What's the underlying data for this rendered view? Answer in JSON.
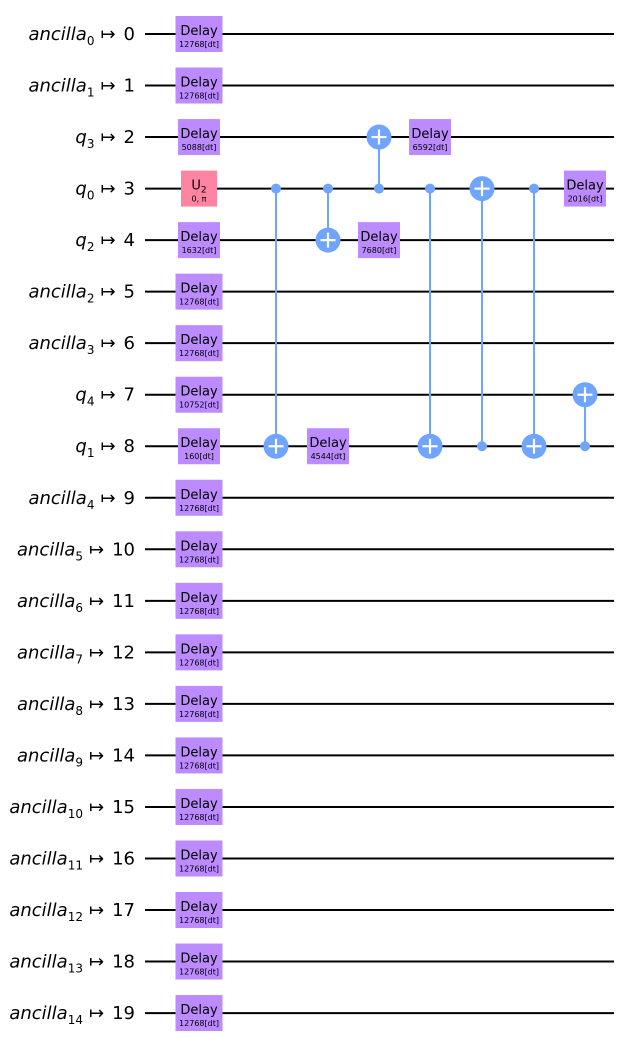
{
  "colors": {
    "delay": "#bb8bff",
    "u2": "#ff84a1",
    "cx": "#6fa4ff",
    "wire": "#000000"
  },
  "qubits": [
    {
      "name": "ancilla",
      "sub": "0",
      "index": "0"
    },
    {
      "name": "ancilla",
      "sub": "1",
      "index": "1"
    },
    {
      "name": "q",
      "sub": "3",
      "index": "2"
    },
    {
      "name": "q",
      "sub": "0",
      "index": "3"
    },
    {
      "name": "q",
      "sub": "2",
      "index": "4"
    },
    {
      "name": "ancilla",
      "sub": "2",
      "index": "5"
    },
    {
      "name": "ancilla",
      "sub": "3",
      "index": "6"
    },
    {
      "name": "q",
      "sub": "4",
      "index": "7"
    },
    {
      "name": "q",
      "sub": "1",
      "index": "8"
    },
    {
      "name": "ancilla",
      "sub": "4",
      "index": "9"
    },
    {
      "name": "ancilla",
      "sub": "5",
      "index": "10"
    },
    {
      "name": "ancilla",
      "sub": "6",
      "index": "11"
    },
    {
      "name": "ancilla",
      "sub": "7",
      "index": "12"
    },
    {
      "name": "ancilla",
      "sub": "8",
      "index": "13"
    },
    {
      "name": "ancilla",
      "sub": "9",
      "index": "14"
    },
    {
      "name": "ancilla",
      "sub": "10",
      "index": "15"
    },
    {
      "name": "ancilla",
      "sub": "11",
      "index": "16"
    },
    {
      "name": "ancilla",
      "sub": "12",
      "index": "17"
    },
    {
      "name": "ancilla",
      "sub": "13",
      "index": "18"
    },
    {
      "name": "ancilla",
      "sub": "14",
      "index": "19"
    }
  ],
  "map_symbol": "↦",
  "gates": [
    {
      "type": "delay",
      "wire": 0,
      "layer": 0,
      "label": "Delay",
      "param": "12768[dt]"
    },
    {
      "type": "delay",
      "wire": 1,
      "layer": 0,
      "label": "Delay",
      "param": "12768[dt]"
    },
    {
      "type": "delay",
      "wire": 2,
      "layer": 0,
      "label": "Delay",
      "param": "5088[dt]"
    },
    {
      "type": "u2",
      "wire": 3,
      "layer": 0,
      "label": "U",
      "label_sub": "2",
      "param": "0, π"
    },
    {
      "type": "delay",
      "wire": 4,
      "layer": 0,
      "label": "Delay",
      "param": "1632[dt]"
    },
    {
      "type": "delay",
      "wire": 5,
      "layer": 0,
      "label": "Delay",
      "param": "12768[dt]"
    },
    {
      "type": "delay",
      "wire": 6,
      "layer": 0,
      "label": "Delay",
      "param": "12768[dt]"
    },
    {
      "type": "delay",
      "wire": 7,
      "layer": 0,
      "label": "Delay",
      "param": "10752[dt]"
    },
    {
      "type": "delay",
      "wire": 8,
      "layer": 0,
      "label": "Delay",
      "param": "160[dt]"
    },
    {
      "type": "delay",
      "wire": 9,
      "layer": 0,
      "label": "Delay",
      "param": "12768[dt]"
    },
    {
      "type": "delay",
      "wire": 10,
      "layer": 0,
      "label": "Delay",
      "param": "12768[dt]"
    },
    {
      "type": "delay",
      "wire": 11,
      "layer": 0,
      "label": "Delay",
      "param": "12768[dt]"
    },
    {
      "type": "delay",
      "wire": 12,
      "layer": 0,
      "label": "Delay",
      "param": "12768[dt]"
    },
    {
      "type": "delay",
      "wire": 13,
      "layer": 0,
      "label": "Delay",
      "param": "12768[dt]"
    },
    {
      "type": "delay",
      "wire": 14,
      "layer": 0,
      "label": "Delay",
      "param": "12768[dt]"
    },
    {
      "type": "delay",
      "wire": 15,
      "layer": 0,
      "label": "Delay",
      "param": "12768[dt]"
    },
    {
      "type": "delay",
      "wire": 16,
      "layer": 0,
      "label": "Delay",
      "param": "12768[dt]"
    },
    {
      "type": "delay",
      "wire": 17,
      "layer": 0,
      "label": "Delay",
      "param": "12768[dt]"
    },
    {
      "type": "delay",
      "wire": 18,
      "layer": 0,
      "label": "Delay",
      "param": "12768[dt]"
    },
    {
      "type": "delay",
      "wire": 19,
      "layer": 0,
      "label": "Delay",
      "param": "12768[dt]"
    },
    {
      "type": "cx",
      "control": 3,
      "target": 8,
      "layer": 1
    },
    {
      "type": "cx",
      "control": 3,
      "target": 4,
      "layer": 2
    },
    {
      "type": "delay",
      "wire": 8,
      "layer": 2,
      "label": "Delay",
      "param": "4544[dt]"
    },
    {
      "type": "cx",
      "control": 3,
      "target": 2,
      "layer": 3
    },
    {
      "type": "delay",
      "wire": 4,
      "layer": 3,
      "label": "Delay",
      "param": "7680[dt]"
    },
    {
      "type": "delay",
      "wire": 2,
      "layer": 4,
      "label": "Delay",
      "param": "6592[dt]"
    },
    {
      "type": "cx",
      "control": 3,
      "target": 8,
      "layer": 4
    },
    {
      "type": "cx",
      "control": 8,
      "target": 3,
      "layer": 5
    },
    {
      "type": "cx",
      "control": 3,
      "target": 8,
      "layer": 6
    },
    {
      "type": "cx",
      "control": 8,
      "target": 7,
      "layer": 7
    },
    {
      "type": "delay",
      "wire": 3,
      "layer": 7,
      "label": "Delay",
      "param": "2016[dt]"
    }
  ]
}
